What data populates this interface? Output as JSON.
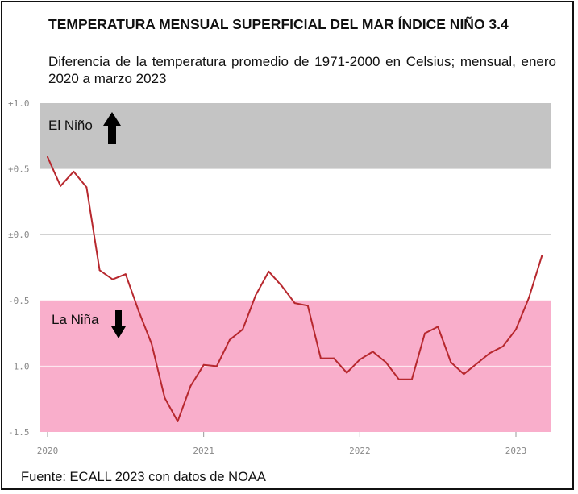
{
  "title": "TEMPERATURA MENSUAL SUPERFICIAL DEL MAR ÍNDICE NIÑO 3.4",
  "subtitle": "Diferencia de la temperatura promedio de 1971-2000 en Celsius; mensual, enero 2020 a marzo 2023",
  "source": "Fuente: ECALL 2023 con datos de NOAA",
  "colors": {
    "line": "#b7282e",
    "el_nino_band": "#c4c4c4",
    "la_nina_band": "#f9aecb",
    "zero_line": "#888888"
  },
  "chart_data": {
    "type": "line",
    "title": "TEMPERATURA MENSUAL SUPERFICIAL DEL MAR ÍNDICE NIÑO 3.4",
    "xlabel": "",
    "ylabel": "",
    "ylim": [
      -1.5,
      1.0
    ],
    "xlim": [
      2020.0,
      2023.25
    ],
    "yticks": [
      {
        "value": 1.0,
        "label": "+1.0"
      },
      {
        "value": 0.5,
        "label": "+0.5"
      },
      {
        "value": 0.0,
        "label": "±0.0"
      },
      {
        "value": -0.5,
        "label": "-0.5"
      },
      {
        "value": -1.0,
        "label": "-1.0"
      },
      {
        "value": -1.5,
        "label": "-1.5"
      }
    ],
    "xticks": [
      {
        "value": 2020,
        "label": "2020"
      },
      {
        "value": 2021,
        "label": "2021"
      },
      {
        "value": 2022,
        "label": "2022"
      },
      {
        "value": 2023,
        "label": "2023"
      }
    ],
    "bands": [
      {
        "name": "el-nino",
        "label": "El Niño",
        "from": 0.5,
        "to": 1.0,
        "arrow": "up"
      },
      {
        "name": "la-nina",
        "label": "La Niña",
        "from": -1.5,
        "to": -0.5,
        "arrow": "down"
      }
    ],
    "series": [
      {
        "name": "Niño 3.4",
        "start": "2020-01",
        "values": [
          0.59,
          0.37,
          0.48,
          0.36,
          -0.27,
          -0.34,
          -0.3,
          -0.58,
          -0.83,
          -1.24,
          -1.42,
          -1.15,
          -0.99,
          -1.0,
          -0.8,
          -0.72,
          -0.46,
          -0.28,
          -0.39,
          -0.52,
          -0.54,
          -0.94,
          -0.94,
          -1.05,
          -0.95,
          -0.89,
          -0.97,
          -1.1,
          -1.1,
          -0.75,
          -0.7,
          -0.97,
          -1.06,
          -0.98,
          -0.9,
          -0.85,
          -0.72,
          -0.48,
          -0.16
        ]
      }
    ]
  }
}
